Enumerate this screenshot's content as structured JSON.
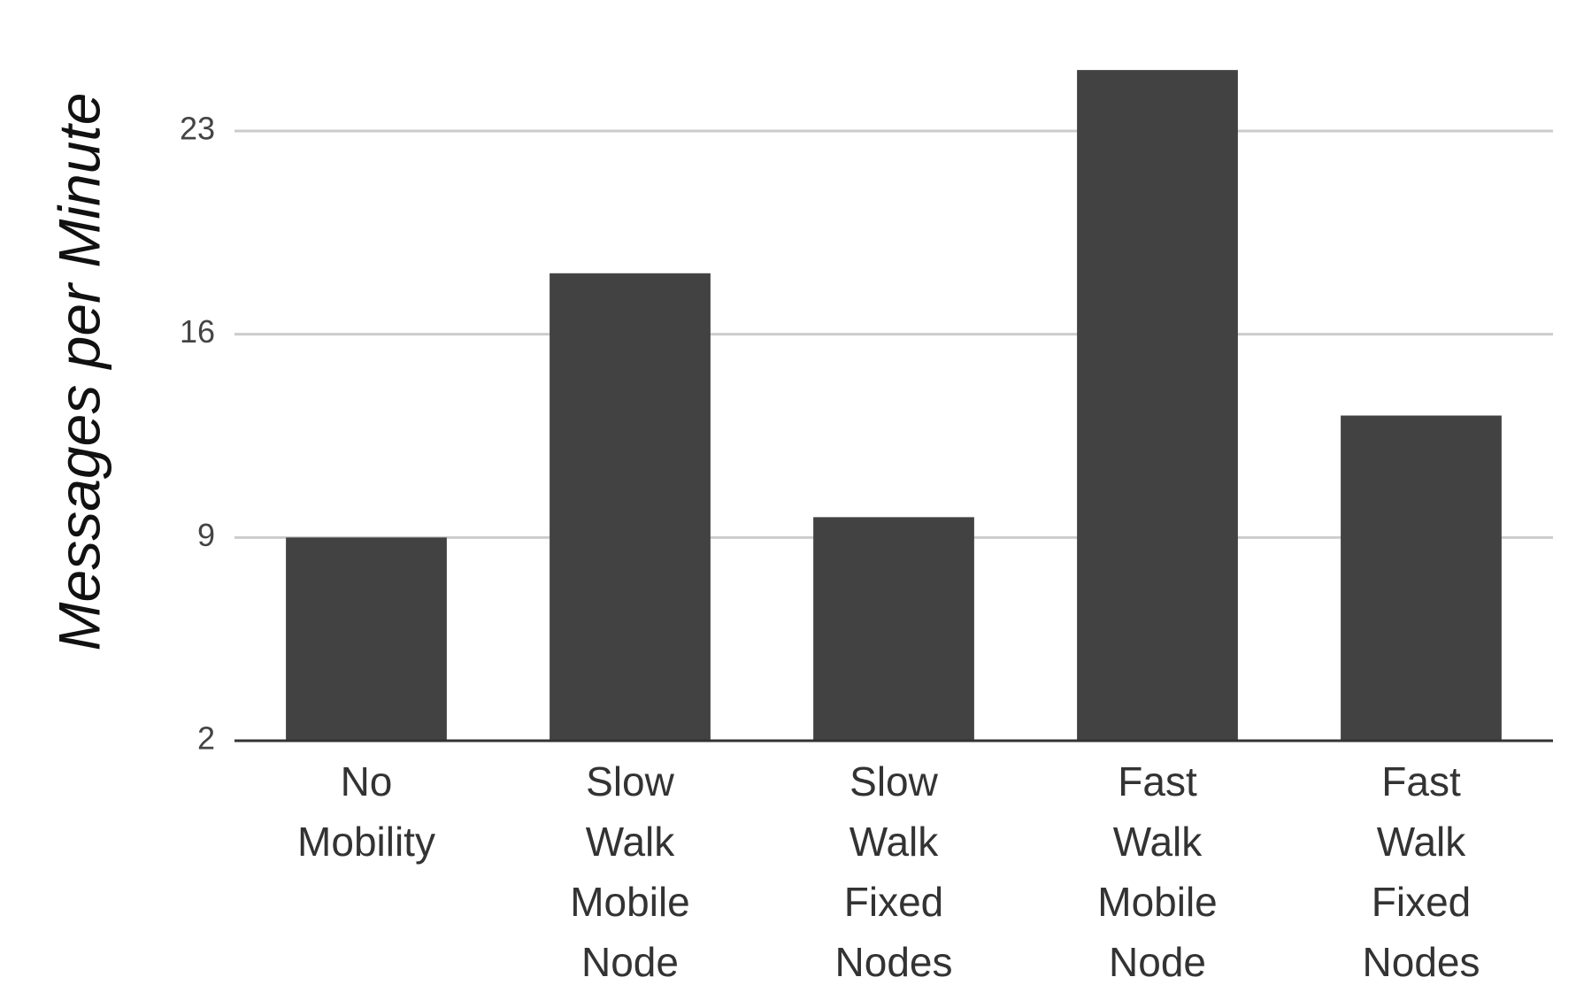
{
  "chart_data": {
    "type": "bar",
    "y_label": "Messages per Minute",
    "categories": [
      "No Mobility",
      "Slow Walk Mobile Node",
      "Slow Walk Fixed Nodes",
      "Fast Walk Mobile Node",
      "Fast Walk Fixed Nodes"
    ],
    "values": [
      9.0,
      18.1,
      9.7,
      25.1,
      13.2
    ],
    "color": "#424242",
    "ylim": [
      2,
      25.5
    ],
    "yticks": [
      2,
      9,
      16,
      23
    ],
    "grid": true
  }
}
